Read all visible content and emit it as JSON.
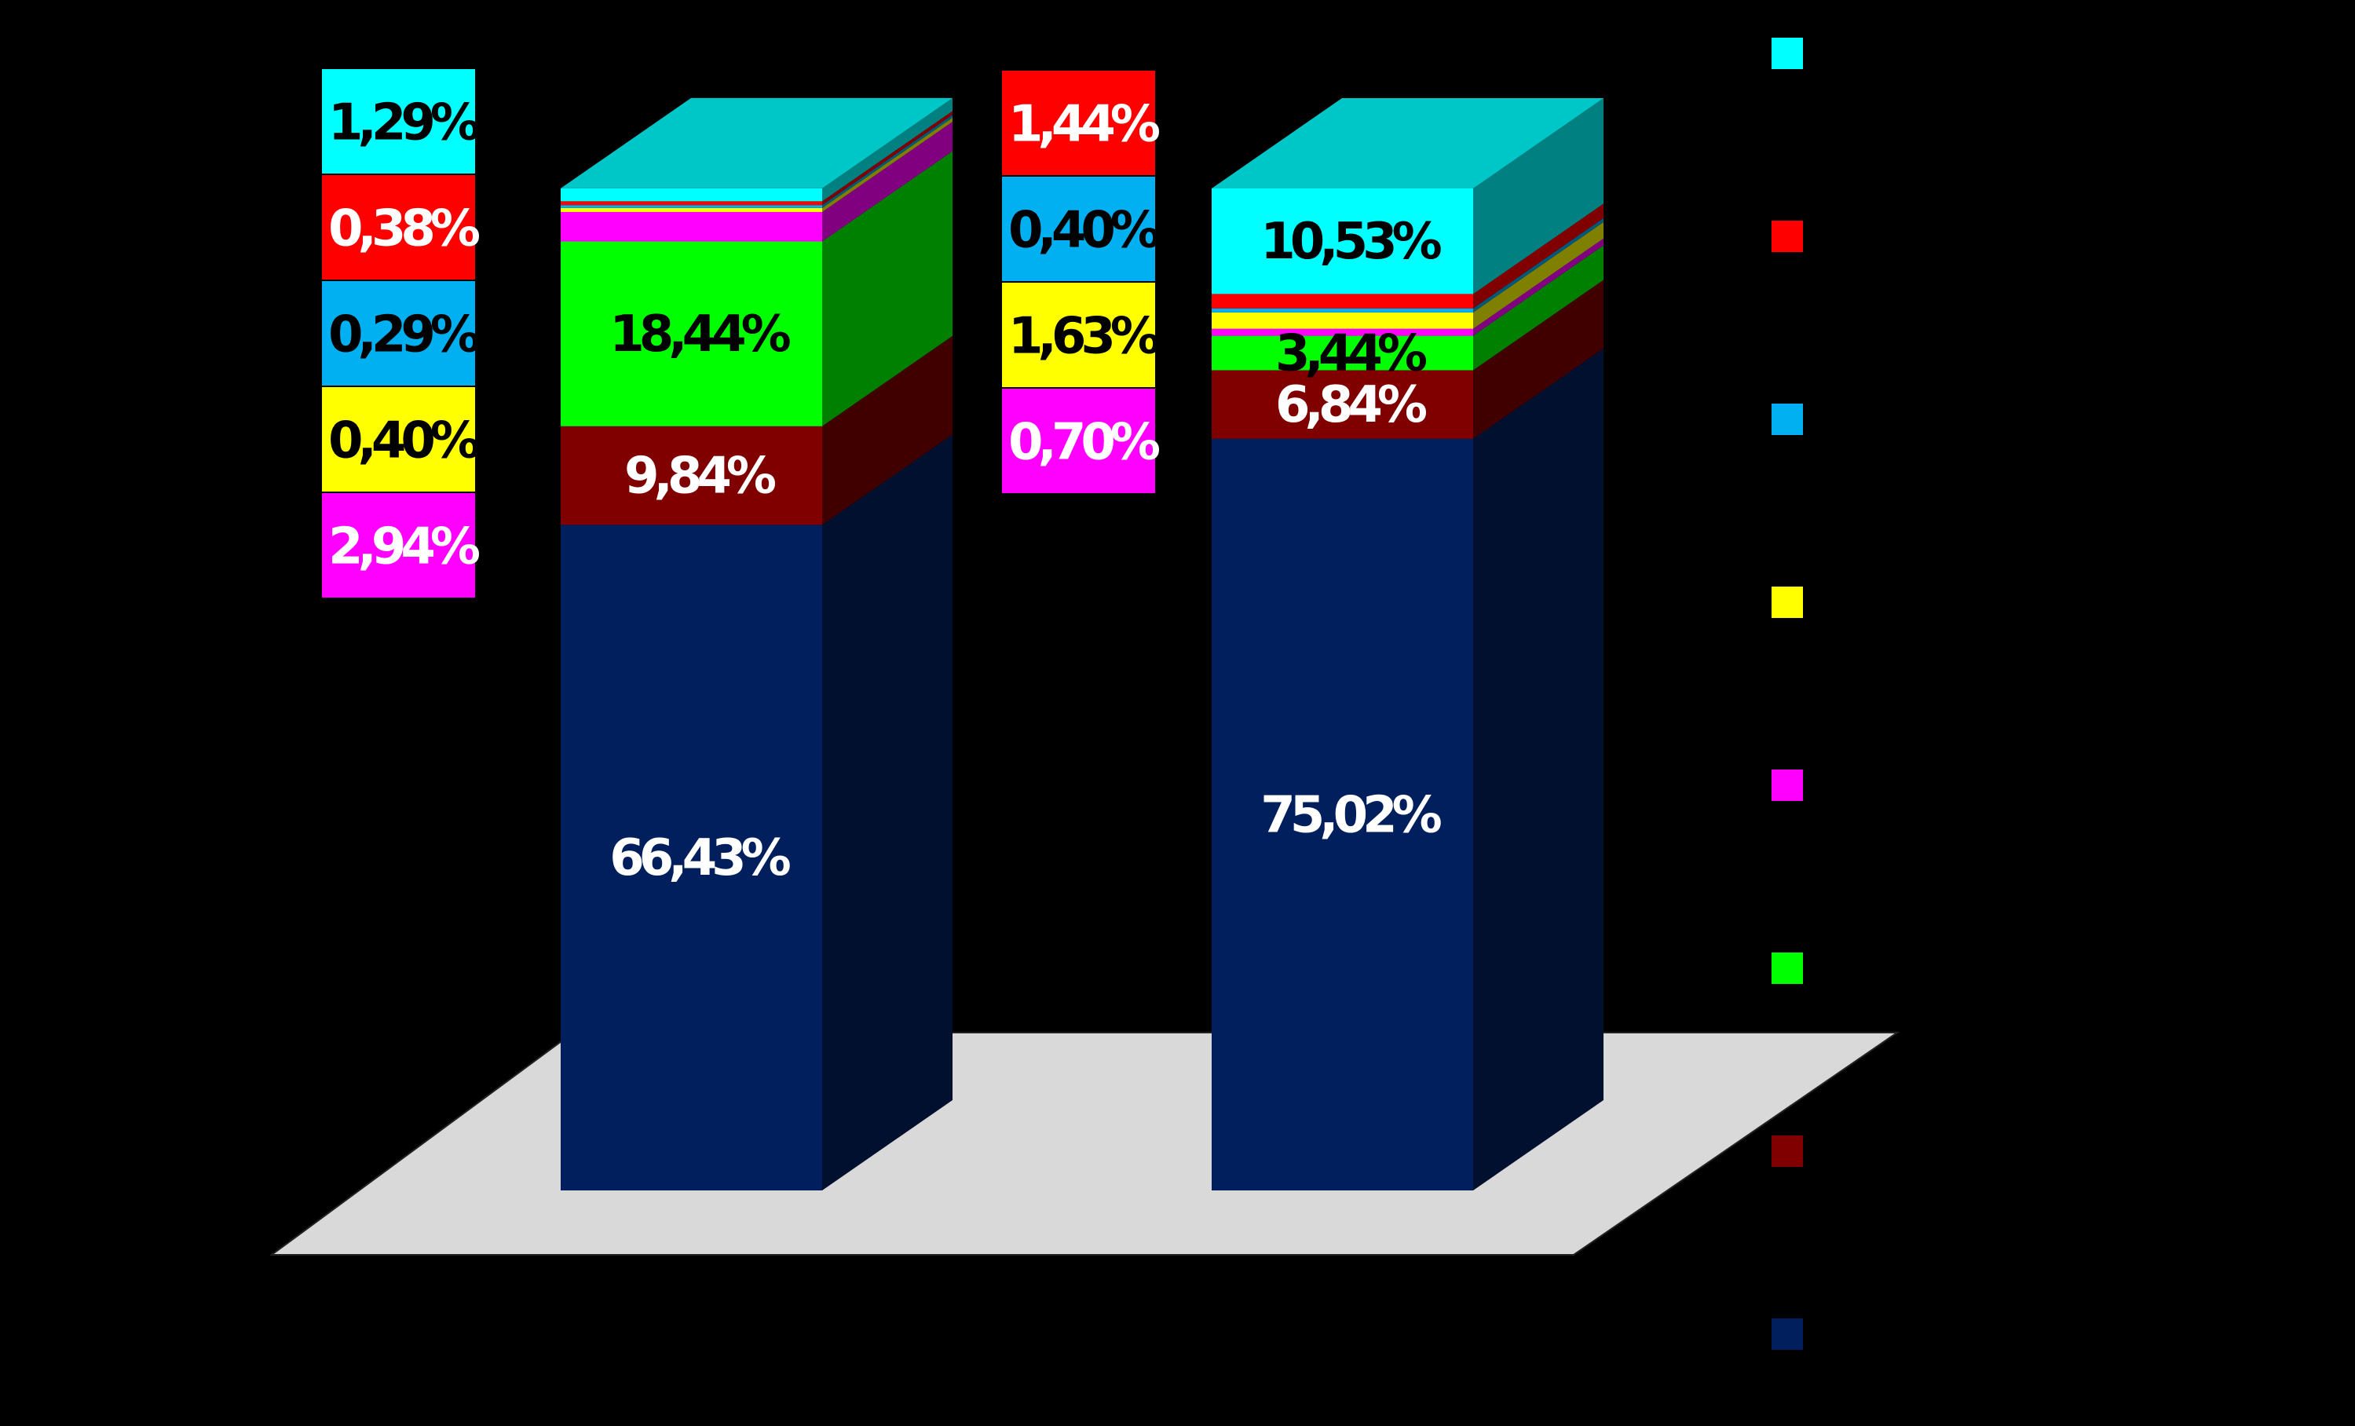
{
  "colors": {
    "background": "#000000",
    "floor": "#d9d9d9",
    "navy": "#001f5c",
    "darkred": "#800000",
    "green": "#00ff00",
    "magenta": "#ff00ff",
    "yellow": "#ffff00",
    "blue": "#00b0f0",
    "red": "#ff0000",
    "cyan": "#00ffff"
  },
  "chart_data": {
    "type": "bar",
    "stacked": true,
    "three_d": true,
    "percent_stacked": true,
    "categories": [
      "",
      ""
    ],
    "ylim": [
      0,
      100
    ],
    "grid": false,
    "legend": {
      "placement": "right",
      "entries": [
        "",
        "",
        "",
        "",
        "",
        "",
        "",
        ""
      ]
    },
    "series": [
      {
        "color": "#001f5c",
        "values": [
          66.43,
          75.02
        ],
        "labels": [
          "66,43%",
          "75,02%"
        ],
        "label_color": "#ffffff"
      },
      {
        "color": "#800000",
        "values": [
          9.84,
          6.84
        ],
        "labels": [
          "9,84%",
          "6,84%"
        ],
        "label_color": "#ffffff"
      },
      {
        "color": "#00ff00",
        "values": [
          18.44,
          3.44
        ],
        "labels": [
          "18,44%",
          "3,44%"
        ],
        "label_color": "#000000"
      },
      {
        "color": "#ff00ff",
        "values": [
          2.94,
          0.7
        ],
        "labels": [
          "2,94%",
          "0,70%"
        ],
        "label_color": "#ffffff"
      },
      {
        "color": "#ffff00",
        "values": [
          0.4,
          1.63
        ],
        "labels": [
          "0,40%",
          "1,63%"
        ],
        "label_color": "#000000"
      },
      {
        "color": "#00b0f0",
        "values": [
          0.29,
          0.4
        ],
        "labels": [
          "0,29%",
          "0,40%"
        ],
        "label_color": "#000000"
      },
      {
        "color": "#ff0000",
        "values": [
          0.38,
          1.44
        ],
        "labels": [
          "0,38%",
          "1,44%"
        ],
        "label_color": "#ffffff"
      },
      {
        "color": "#00ffff",
        "values": [
          1.29,
          10.53
        ],
        "labels": [
          "1,29%",
          "10,53%"
        ],
        "label_color": "#000000"
      }
    ]
  }
}
